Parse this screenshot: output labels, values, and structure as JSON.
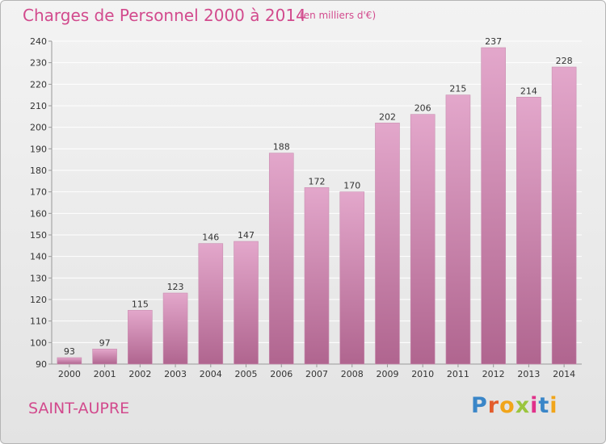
{
  "header": {
    "title": "Charges de Personnel 2000 à 2014",
    "subtitle": "(en milliers d'€)"
  },
  "footer": {
    "town": "SAINT-AUPRE",
    "logo_letters": [
      "P",
      "r",
      "o",
      "x",
      "i",
      "t",
      "i"
    ]
  },
  "colors": {
    "accent": "#d24a8d",
    "bar_top": "#e3a7cb",
    "bar_bottom": "#b0658f",
    "grid": "#ffffff",
    "axis_text": "#333333"
  },
  "chart_data": {
    "type": "bar",
    "title": "Charges de Personnel 2000 à 2014",
    "subtitle": "(en milliers d'€)",
    "categories": [
      "2000",
      "2001",
      "2002",
      "2003",
      "2004",
      "2005",
      "2006",
      "2007",
      "2008",
      "2009",
      "2010",
      "2011",
      "2012",
      "2013",
      "2014"
    ],
    "values": [
      93,
      97,
      115,
      123,
      146,
      147,
      188,
      172,
      170,
      202,
      206,
      215,
      237,
      214,
      228
    ],
    "yticks": [
      90,
      100,
      110,
      120,
      130,
      140,
      150,
      160,
      170,
      180,
      190,
      200,
      210,
      220,
      230,
      240
    ],
    "ylim": [
      90,
      240
    ],
    "grid": true,
    "data_labels": true
  }
}
